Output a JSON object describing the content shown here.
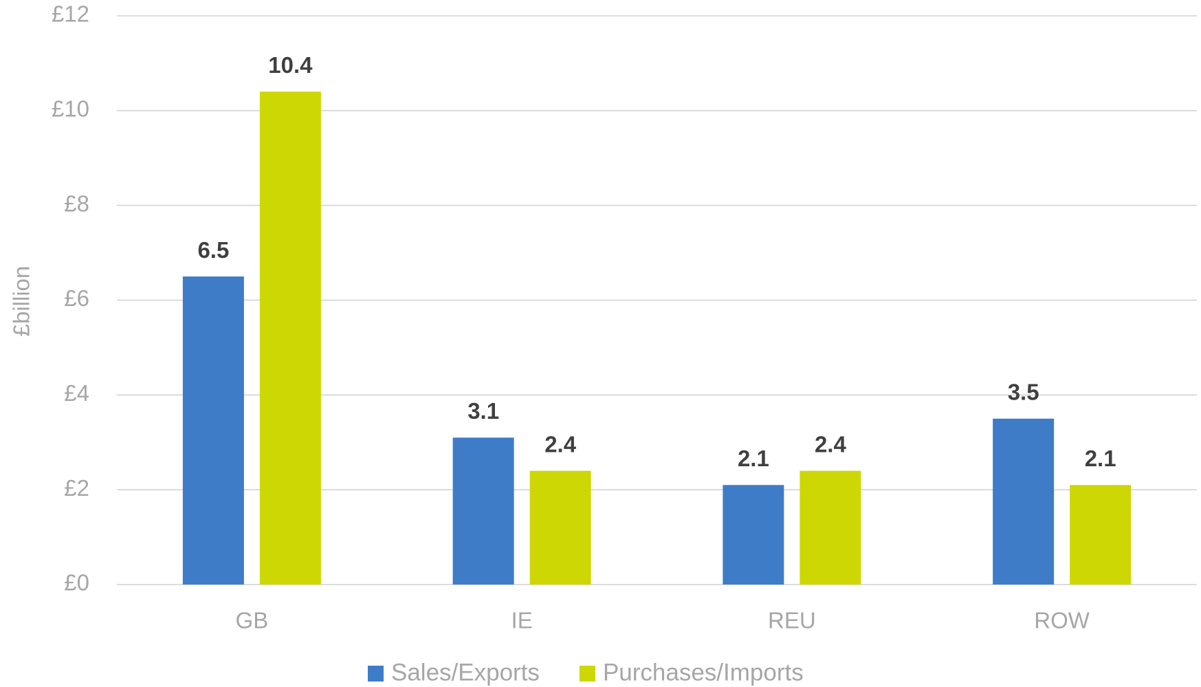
{
  "chart_data": {
    "type": "bar",
    "y_axis_label": "£billion",
    "categories": [
      "GB",
      "IE",
      "REU",
      "ROW"
    ],
    "series": [
      {
        "name": "Sales/Exports",
        "color": "#3f7cc8",
        "values": [
          6.5,
          3.1,
          2.1,
          3.5
        ]
      },
      {
        "name": "Purchases/Imports",
        "color": "#cdd704",
        "values": [
          10.4,
          2.4,
          2.4,
          2.1
        ]
      }
    ],
    "ylim": [
      0,
      12
    ],
    "yticks": [
      {
        "value": 0,
        "label": "£0"
      },
      {
        "value": 2,
        "label": "£2"
      },
      {
        "value": 4,
        "label": "£4"
      },
      {
        "value": 6,
        "label": "£6"
      },
      {
        "value": 8,
        "label": "£8"
      },
      {
        "value": 10,
        "label": "£10"
      },
      {
        "value": 12,
        "label": "£12"
      }
    ],
    "grid": true,
    "legend": "bottom"
  }
}
